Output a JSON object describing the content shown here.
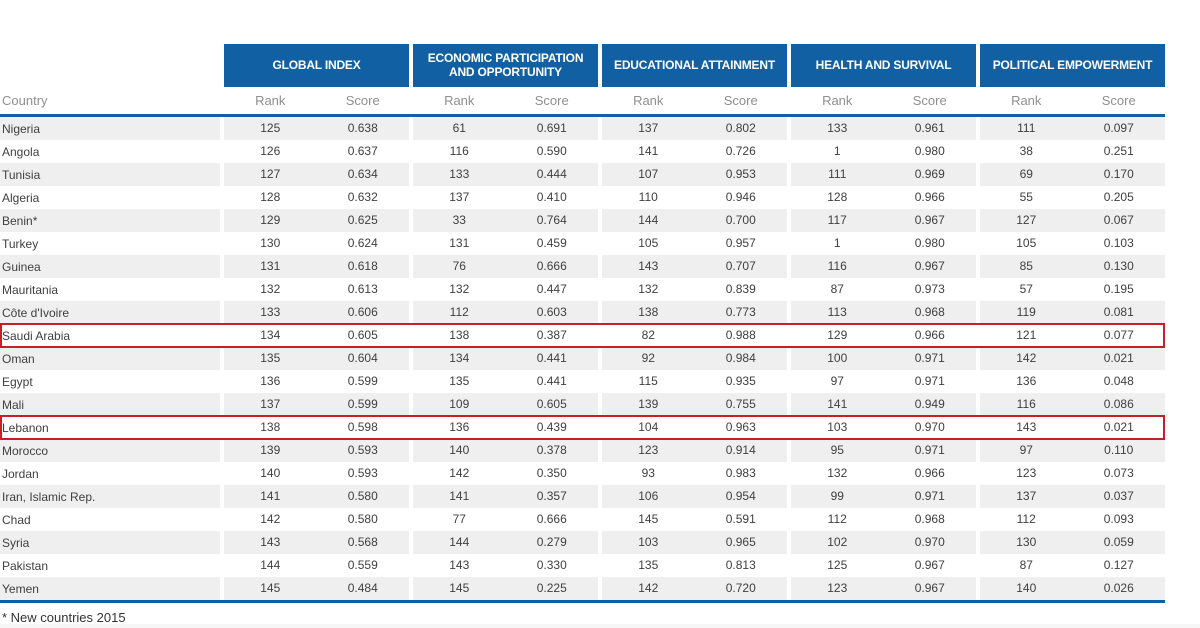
{
  "chart_data": {
    "type": "table",
    "country_column_header": "Country",
    "rank_label": "Rank",
    "score_label": "Score",
    "group_headers": [
      "GLOBAL INDEX",
      "ECONOMIC PARTICIPATION AND OPPORTUNITY",
      "EDUCATIONAL ATTAINMENT",
      "HEALTH AND SURVIVAL",
      "POLITICAL EMPOWERMENT"
    ],
    "rows": [
      {
        "country": "Nigeria",
        "highlight": false,
        "values": [
          125,
          "0.638",
          61,
          "0.691",
          137,
          "0.802",
          133,
          "0.961",
          111,
          "0.097"
        ]
      },
      {
        "country": "Angola",
        "highlight": false,
        "values": [
          126,
          "0.637",
          116,
          "0.590",
          141,
          "0.726",
          1,
          "0.980",
          38,
          "0.251"
        ]
      },
      {
        "country": "Tunisia",
        "highlight": false,
        "values": [
          127,
          "0.634",
          133,
          "0.444",
          107,
          "0.953",
          111,
          "0.969",
          69,
          "0.170"
        ]
      },
      {
        "country": "Algeria",
        "highlight": false,
        "values": [
          128,
          "0.632",
          137,
          "0.410",
          110,
          "0.946",
          128,
          "0.966",
          55,
          "0.205"
        ]
      },
      {
        "country": "Benin*",
        "highlight": false,
        "values": [
          129,
          "0.625",
          33,
          "0.764",
          144,
          "0.700",
          117,
          "0.967",
          127,
          "0.067"
        ]
      },
      {
        "country": "Turkey",
        "highlight": false,
        "values": [
          130,
          "0.624",
          131,
          "0.459",
          105,
          "0.957",
          1,
          "0.980",
          105,
          "0.103"
        ]
      },
      {
        "country": "Guinea",
        "highlight": false,
        "values": [
          131,
          "0.618",
          76,
          "0.666",
          143,
          "0.707",
          116,
          "0.967",
          85,
          "0.130"
        ]
      },
      {
        "country": "Mauritania",
        "highlight": false,
        "values": [
          132,
          "0.613",
          132,
          "0.447",
          132,
          "0.839",
          87,
          "0.973",
          57,
          "0.195"
        ]
      },
      {
        "country": "Côte d'Ivoire",
        "highlight": false,
        "values": [
          133,
          "0.606",
          112,
          "0.603",
          138,
          "0.773",
          113,
          "0.968",
          119,
          "0.081"
        ]
      },
      {
        "country": "Saudi Arabia",
        "highlight": true,
        "values": [
          134,
          "0.605",
          138,
          "0.387",
          82,
          "0.988",
          129,
          "0.966",
          121,
          "0.077"
        ]
      },
      {
        "country": "Oman",
        "highlight": false,
        "values": [
          135,
          "0.604",
          134,
          "0.441",
          92,
          "0.984",
          100,
          "0.971",
          142,
          "0.021"
        ]
      },
      {
        "country": "Egypt",
        "highlight": false,
        "values": [
          136,
          "0.599",
          135,
          "0.441",
          115,
          "0.935",
          97,
          "0.971",
          136,
          "0.048"
        ]
      },
      {
        "country": "Mali",
        "highlight": false,
        "values": [
          137,
          "0.599",
          109,
          "0.605",
          139,
          "0.755",
          141,
          "0.949",
          116,
          "0.086"
        ]
      },
      {
        "country": "Lebanon",
        "highlight": true,
        "values": [
          138,
          "0.598",
          136,
          "0.439",
          104,
          "0.963",
          103,
          "0.970",
          143,
          "0.021"
        ]
      },
      {
        "country": "Morocco",
        "highlight": false,
        "values": [
          139,
          "0.593",
          140,
          "0.378",
          123,
          "0.914",
          95,
          "0.971",
          97,
          "0.110"
        ]
      },
      {
        "country": "Jordan",
        "highlight": false,
        "values": [
          140,
          "0.593",
          142,
          "0.350",
          93,
          "0.983",
          132,
          "0.966",
          123,
          "0.073"
        ]
      },
      {
        "country": "Iran, Islamic Rep.",
        "highlight": false,
        "values": [
          141,
          "0.580",
          141,
          "0.357",
          106,
          "0.954",
          99,
          "0.971",
          137,
          "0.037"
        ]
      },
      {
        "country": "Chad",
        "highlight": false,
        "values": [
          142,
          "0.580",
          77,
          "0.666",
          145,
          "0.591",
          112,
          "0.968",
          112,
          "0.093"
        ]
      },
      {
        "country": "Syria",
        "highlight": false,
        "values": [
          143,
          "0.568",
          144,
          "0.279",
          103,
          "0.965",
          102,
          "0.970",
          130,
          "0.059"
        ]
      },
      {
        "country": "Pakistan",
        "highlight": false,
        "values": [
          144,
          "0.559",
          143,
          "0.330",
          135,
          "0.813",
          125,
          "0.967",
          87,
          "0.127"
        ]
      },
      {
        "country": "Yemen",
        "highlight": false,
        "values": [
          145,
          "0.484",
          145,
          "0.225",
          142,
          "0.720",
          123,
          "0.967",
          140,
          "0.026"
        ]
      }
    ],
    "footnote": "* New countries 2015"
  },
  "colors": {
    "header_blue": "#1160A3",
    "rule_blue": "#1160A3",
    "stripe_gray": "#EFEFEF",
    "highlight_red": "#C32127",
    "subheader_gray": "#8F8F8F",
    "body_text": "#3F3F3F"
  }
}
